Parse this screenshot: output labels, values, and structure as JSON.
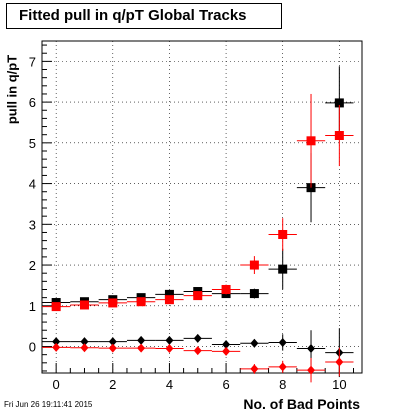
{
  "chart_data": {
    "type": "scatter",
    "title": "Fitted pull in q/pT  Global Tracks",
    "xlabel": "No. of Bad Points",
    "ylabel": "pull in q/pT",
    "xlim": [
      -0.5,
      10.8
    ],
    "ylim": [
      -0.65,
      7.5
    ],
    "x_ticks": [
      0,
      2,
      4,
      6,
      8,
      10
    ],
    "y_ticks": [
      0,
      1,
      2,
      3,
      4,
      5,
      6,
      7
    ],
    "grid": true,
    "series": [
      {
        "marker": "square",
        "color": "#000000",
        "points": [
          {
            "x": 0,
            "y": 1.08,
            "err": 0.05
          },
          {
            "x": 1,
            "y": 1.1,
            "err": 0.05
          },
          {
            "x": 2,
            "y": 1.15,
            "err": 0.05
          },
          {
            "x": 3,
            "y": 1.2,
            "err": 0.06
          },
          {
            "x": 4,
            "y": 1.28,
            "err": 0.07
          },
          {
            "x": 5,
            "y": 1.35,
            "err": 0.08
          },
          {
            "x": 6,
            "y": 1.3,
            "err": 0.1
          },
          {
            "x": 7,
            "y": 1.3,
            "err": 0.12
          },
          {
            "x": 8,
            "y": 1.9,
            "err": 0.5
          },
          {
            "x": 9,
            "y": 3.9,
            "err": 0.85
          },
          {
            "x": 10,
            "y": 5.98,
            "err": 0.9
          }
        ]
      },
      {
        "marker": "square",
        "color": "#ff0000",
        "points": [
          {
            "x": 0,
            "y": 0.98,
            "err": 0.05
          },
          {
            "x": 1,
            "y": 1.02,
            "err": 0.05
          },
          {
            "x": 2,
            "y": 1.07,
            "err": 0.05
          },
          {
            "x": 3,
            "y": 1.1,
            "err": 0.06
          },
          {
            "x": 4,
            "y": 1.15,
            "err": 0.07
          },
          {
            "x": 5,
            "y": 1.25,
            "err": 0.08
          },
          {
            "x": 6,
            "y": 1.4,
            "err": 0.12
          },
          {
            "x": 7,
            "y": 2.0,
            "err": 0.22
          },
          {
            "x": 8,
            "y": 2.75,
            "err": 0.4
          },
          {
            "x": 9,
            "y": 5.05,
            "err": 1.15
          },
          {
            "x": 10,
            "y": 5.18,
            "err": 0.75
          }
        ]
      },
      {
        "marker": "diamond",
        "color": "#000000",
        "points": [
          {
            "x": 0,
            "y": 0.12,
            "err": 0.04
          },
          {
            "x": 1,
            "y": 0.12,
            "err": 0.04
          },
          {
            "x": 2,
            "y": 0.12,
            "err": 0.04
          },
          {
            "x": 3,
            "y": 0.15,
            "err": 0.05
          },
          {
            "x": 4,
            "y": 0.15,
            "err": 0.05
          },
          {
            "x": 5,
            "y": 0.2,
            "err": 0.06
          },
          {
            "x": 6,
            "y": 0.05,
            "err": 0.08
          },
          {
            "x": 7,
            "y": 0.08,
            "err": 0.1
          },
          {
            "x": 8,
            "y": 0.1,
            "err": 0.2
          },
          {
            "x": 9,
            "y": -0.05,
            "err": 0.45
          },
          {
            "x": 10,
            "y": -0.15,
            "err": 0.6
          }
        ]
      },
      {
        "marker": "diamond",
        "color": "#ff0000",
        "points": [
          {
            "x": 0,
            "y": -0.02,
            "err": 0.04
          },
          {
            "x": 1,
            "y": -0.03,
            "err": 0.04
          },
          {
            "x": 2,
            "y": -0.04,
            "err": 0.04
          },
          {
            "x": 3,
            "y": -0.04,
            "err": 0.05
          },
          {
            "x": 4,
            "y": -0.05,
            "err": 0.05
          },
          {
            "x": 5,
            "y": -0.1,
            "err": 0.06
          },
          {
            "x": 6,
            "y": -0.12,
            "err": 0.08
          },
          {
            "x": 7,
            "y": -0.55,
            "err": 0.12
          },
          {
            "x": 8,
            "y": -0.5,
            "err": 0.15
          },
          {
            "x": 9,
            "y": -0.58,
            "err": 0.3
          },
          {
            "x": 10,
            "y": -0.38,
            "err": 0.35
          }
        ]
      }
    ]
  },
  "timestamp": "Fri Jun 26 19:11:41 2015"
}
